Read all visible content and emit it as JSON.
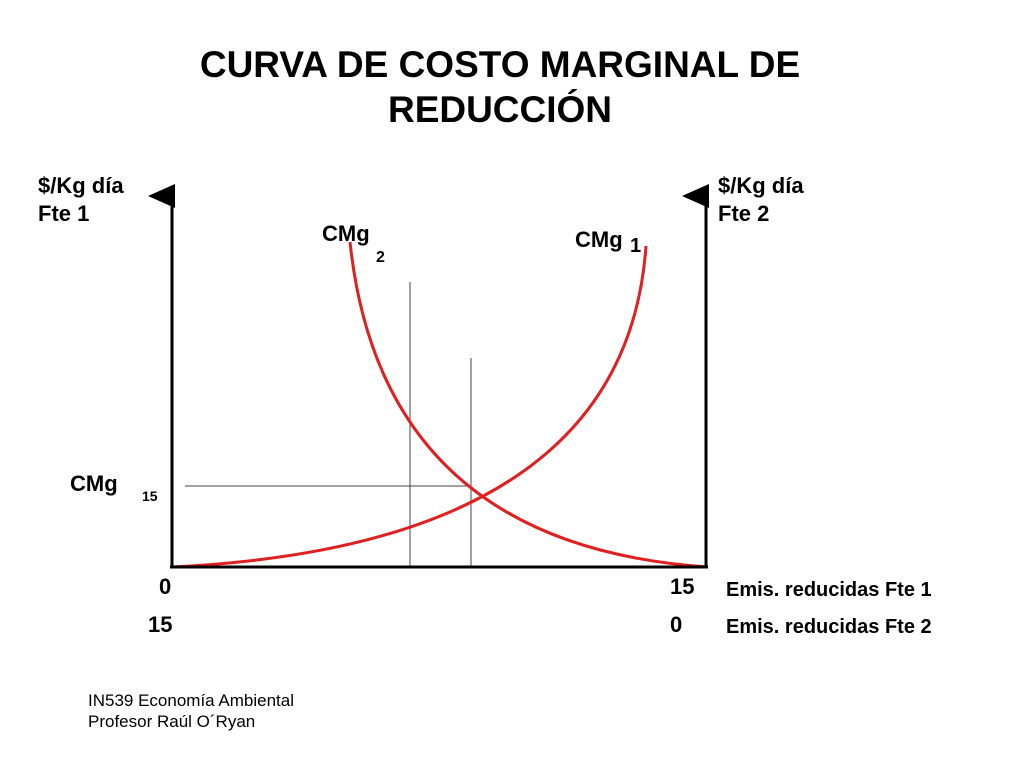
{
  "title": {
    "line1": "CURVA DE COSTO MARGINAL DE",
    "line2": "REDUCCIÓN"
  },
  "axes": {
    "left_label_line1": "$/Kg día",
    "left_label_line2": "Fte 1",
    "right_label_line1": "$/Kg día",
    "right_label_line2": "Fte 2",
    "x_row1_left": "0",
    "x_row1_right": "15",
    "x_row1_label": "Emis. reducidas Fte 1",
    "x_row2_left": "15",
    "x_row2_right": "0",
    "x_row2_label": "Emis. reducidas Fte 2"
  },
  "curves": {
    "cmg2_main": "CMg",
    "cmg2_sub": "2",
    "cmg1_main": "CMg",
    "cmg1_sub": "1",
    "equilibrium_main": "CMg",
    "equilibrium_sub": "15",
    "color": "#e02020"
  },
  "footer": {
    "line1": "IN539 Economía Ambiental",
    "line2": "Profesor Raúl O´Ryan"
  }
}
